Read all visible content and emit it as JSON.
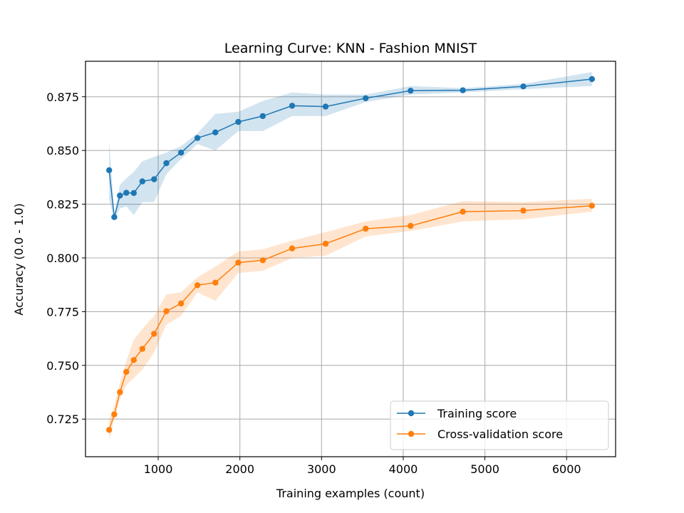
{
  "chart_data": {
    "type": "line",
    "title": "Learning Curve: KNN - Fashion MNIST",
    "xlabel": "Training examples (count)",
    "ylabel": "Accuracy (0.0 - 1.0)",
    "xlim": [
      110,
      6600
    ],
    "ylim": [
      0.7075,
      0.8915
    ],
    "xticks": [
      1000,
      2000,
      3000,
      4000,
      5000,
      6000
    ],
    "yticks": [
      0.725,
      0.75,
      0.775,
      0.8,
      0.825,
      0.85,
      0.875
    ],
    "ytick_format": 3,
    "grid": true,
    "legend_position": "lower-right",
    "x": [
      400,
      462,
      531,
      610,
      701,
      806,
      950,
      1100,
      1280,
      1480,
      1700,
      1980,
      2280,
      2640,
      3050,
      3540,
      4090,
      4730,
      5470,
      6310
    ],
    "series": [
      {
        "name": "Training score",
        "color": "#1f77b4",
        "values": [
          0.8408,
          0.819,
          0.829,
          0.8303,
          0.8302,
          0.8356,
          0.8366,
          0.8441,
          0.849,
          0.8558,
          0.8584,
          0.8633,
          0.866,
          0.8708,
          0.8704,
          0.8743,
          0.8778,
          0.878,
          0.8798,
          0.8832
        ],
        "lower": [
          0.827,
          0.818,
          0.823,
          0.824,
          0.82,
          0.826,
          0.826,
          0.839,
          0.846,
          0.853,
          0.85,
          0.859,
          0.859,
          0.866,
          0.866,
          0.8725,
          0.876,
          0.877,
          0.8785,
          0.88
        ],
        "upper": [
          0.855,
          0.82,
          0.834,
          0.837,
          0.84,
          0.845,
          0.847,
          0.849,
          0.852,
          0.858,
          0.867,
          0.868,
          0.873,
          0.877,
          0.876,
          0.876,
          0.88,
          0.879,
          0.881,
          0.8865
        ]
      },
      {
        "name": "Cross-validation score",
        "color": "#ff7f0e",
        "values": [
          0.72,
          0.7272,
          0.7375,
          0.747,
          0.7525,
          0.7577,
          0.7647,
          0.7752,
          0.7788,
          0.7873,
          0.7885,
          0.7978,
          0.7989,
          0.8044,
          0.8066,
          0.8136,
          0.8149,
          0.8215,
          0.822,
          0.8243
        ],
        "lower": [
          0.715,
          0.725,
          0.734,
          0.741,
          0.744,
          0.748,
          0.756,
          0.769,
          0.773,
          0.784,
          0.78,
          0.793,
          0.794,
          0.8,
          0.801,
          0.81,
          0.8125,
          0.817,
          0.818,
          0.8215
        ],
        "upper": [
          0.725,
          0.731,
          0.742,
          0.752,
          0.762,
          0.767,
          0.773,
          0.783,
          0.784,
          0.791,
          0.796,
          0.803,
          0.804,
          0.808,
          0.812,
          0.817,
          0.82,
          0.8265,
          0.826,
          0.8275
        ]
      }
    ]
  }
}
